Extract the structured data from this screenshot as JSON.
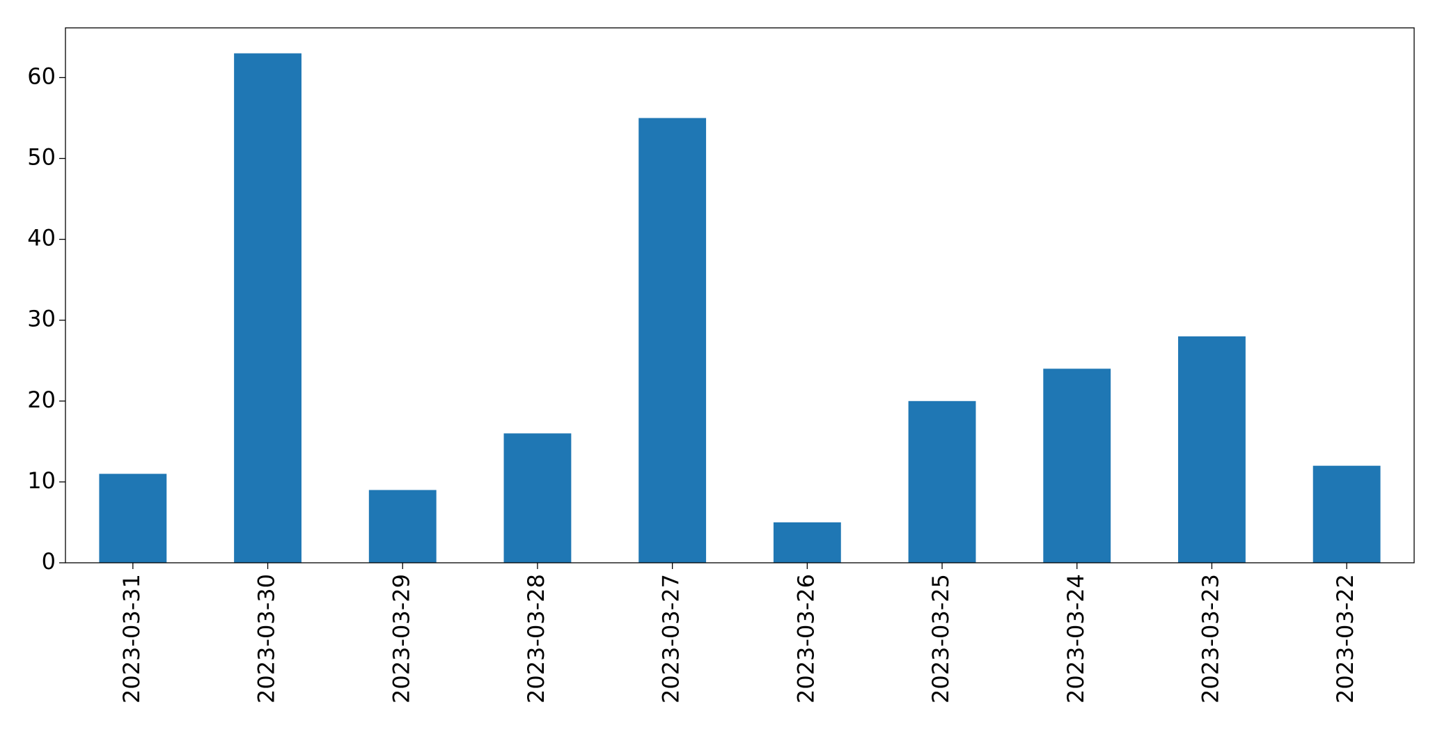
{
  "chart_data": {
    "type": "bar",
    "categories": [
      "2023-03-31",
      "2023-03-30",
      "2023-03-29",
      "2023-03-28",
      "2023-03-27",
      "2023-03-26",
      "2023-03-25",
      "2023-03-24",
      "2023-03-23",
      "2023-03-22"
    ],
    "values": [
      11,
      63,
      9,
      16,
      55,
      5,
      20,
      24,
      28,
      12
    ],
    "color": "#1f77b4",
    "ylim": [
      0,
      66.15
    ],
    "yticks": [
      0,
      10,
      20,
      30,
      40,
      50,
      60
    ],
    "grid": false
  }
}
